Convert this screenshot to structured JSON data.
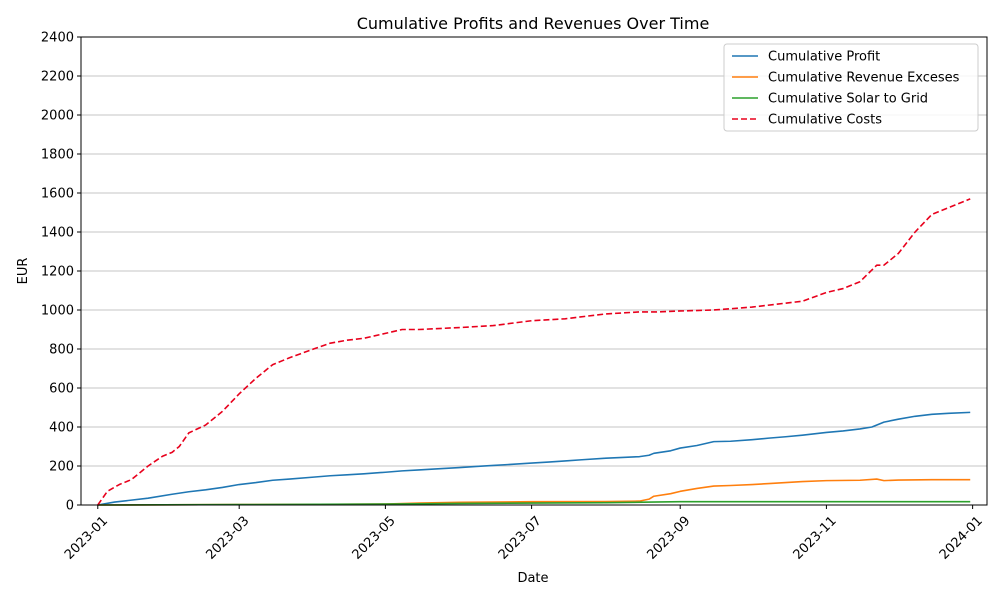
{
  "chart_data": {
    "type": "line",
    "title": "Cumulative Profits and Revenues Over Time",
    "xlabel": "Date",
    "ylabel": "EUR",
    "xlim": [
      "2022-12-25",
      "2024-01-07"
    ],
    "ylim": [
      0,
      2400
    ],
    "xticks": [
      "2023-01",
      "2023-03",
      "2023-05",
      "2023-07",
      "2023-09",
      "2023-11",
      "2024-01"
    ],
    "xtick_dates": [
      "2023-01-01",
      "2023-03-01",
      "2023-05-01",
      "2023-07-01",
      "2023-09-01",
      "2023-11-01",
      "2024-01-01"
    ],
    "yticks": [
      0,
      200,
      400,
      600,
      800,
      1000,
      1200,
      1400,
      1600,
      1800,
      2000,
      2200,
      2400
    ],
    "grid": "horizontal",
    "legend_position": "top-right",
    "series": [
      {
        "name": "Cumulative Profit",
        "color": "#1f77b4",
        "style": "solid",
        "points": [
          [
            "2023-01-01",
            0
          ],
          [
            "2023-01-08",
            15
          ],
          [
            "2023-01-15",
            25
          ],
          [
            "2023-01-22",
            35
          ],
          [
            "2023-02-01",
            55
          ],
          [
            "2023-02-08",
            68
          ],
          [
            "2023-02-15",
            78
          ],
          [
            "2023-02-22",
            90
          ],
          [
            "2023-03-01",
            105
          ],
          [
            "2023-03-08",
            115
          ],
          [
            "2023-03-15",
            127
          ],
          [
            "2023-03-22",
            133
          ],
          [
            "2023-04-01",
            143
          ],
          [
            "2023-04-08",
            150
          ],
          [
            "2023-04-15",
            155
          ],
          [
            "2023-04-22",
            160
          ],
          [
            "2023-05-01",
            168
          ],
          [
            "2023-05-08",
            175
          ],
          [
            "2023-05-15",
            180
          ],
          [
            "2023-05-22",
            185
          ],
          [
            "2023-06-01",
            192
          ],
          [
            "2023-06-08",
            198
          ],
          [
            "2023-06-15",
            203
          ],
          [
            "2023-06-22",
            208
          ],
          [
            "2023-07-01",
            215
          ],
          [
            "2023-07-08",
            220
          ],
          [
            "2023-07-15",
            226
          ],
          [
            "2023-07-22",
            232
          ],
          [
            "2023-08-01",
            240
          ],
          [
            "2023-08-08",
            244
          ],
          [
            "2023-08-15",
            248
          ],
          [
            "2023-08-19",
            255
          ],
          [
            "2023-08-21",
            265
          ],
          [
            "2023-08-28",
            278
          ],
          [
            "2023-09-01",
            292
          ],
          [
            "2023-09-08",
            305
          ],
          [
            "2023-09-15",
            325
          ],
          [
            "2023-09-22",
            327
          ],
          [
            "2023-10-01",
            335
          ],
          [
            "2023-10-08",
            343
          ],
          [
            "2023-10-15",
            350
          ],
          [
            "2023-10-22",
            358
          ],
          [
            "2023-11-01",
            372
          ],
          [
            "2023-11-08",
            380
          ],
          [
            "2023-11-15",
            390
          ],
          [
            "2023-11-20",
            400
          ],
          [
            "2023-11-25",
            425
          ],
          [
            "2023-12-01",
            440
          ],
          [
            "2023-12-08",
            455
          ],
          [
            "2023-12-15",
            465
          ],
          [
            "2023-12-22",
            470
          ],
          [
            "2023-12-31",
            475
          ]
        ]
      },
      {
        "name": "Cumulative Revenue Exceses",
        "color": "#ff7f0e",
        "style": "solid",
        "points": [
          [
            "2023-01-01",
            0
          ],
          [
            "2023-03-01",
            2
          ],
          [
            "2023-04-01",
            3
          ],
          [
            "2023-05-01",
            5
          ],
          [
            "2023-05-15",
            10
          ],
          [
            "2023-06-01",
            14
          ],
          [
            "2023-07-01",
            17
          ],
          [
            "2023-08-01",
            18
          ],
          [
            "2023-08-15",
            20
          ],
          [
            "2023-08-19",
            30
          ],
          [
            "2023-08-21",
            45
          ],
          [
            "2023-08-28",
            58
          ],
          [
            "2023-09-01",
            70
          ],
          [
            "2023-09-08",
            85
          ],
          [
            "2023-09-15",
            97
          ],
          [
            "2023-09-22",
            100
          ],
          [
            "2023-10-01",
            105
          ],
          [
            "2023-10-08",
            110
          ],
          [
            "2023-10-15",
            115
          ],
          [
            "2023-10-22",
            120
          ],
          [
            "2023-11-01",
            125
          ],
          [
            "2023-11-15",
            127
          ],
          [
            "2023-11-22",
            133
          ],
          [
            "2023-11-25",
            125
          ],
          [
            "2023-12-01",
            128
          ],
          [
            "2023-12-15",
            130
          ],
          [
            "2023-12-31",
            130
          ]
        ]
      },
      {
        "name": "Cumulative Solar to Grid",
        "color": "#2ca02c",
        "style": "solid",
        "points": [
          [
            "2023-01-01",
            0
          ],
          [
            "2023-03-01",
            2
          ],
          [
            "2023-05-01",
            5
          ],
          [
            "2023-06-01",
            8
          ],
          [
            "2023-07-01",
            10
          ],
          [
            "2023-08-01",
            12
          ],
          [
            "2023-08-20",
            15
          ],
          [
            "2023-09-01",
            17
          ],
          [
            "2023-12-31",
            17
          ]
        ]
      },
      {
        "name": "Cumulative Costs",
        "color": "#e8001c",
        "style": "dashed",
        "points": [
          [
            "2023-01-01",
            0
          ],
          [
            "2023-01-05",
            70
          ],
          [
            "2023-01-10",
            105
          ],
          [
            "2023-01-15",
            130
          ],
          [
            "2023-01-22",
            200
          ],
          [
            "2023-01-28",
            250
          ],
          [
            "2023-02-01",
            270
          ],
          [
            "2023-02-04",
            300
          ],
          [
            "2023-02-08",
            370
          ],
          [
            "2023-02-15",
            410
          ],
          [
            "2023-02-22",
            480
          ],
          [
            "2023-03-01",
            570
          ],
          [
            "2023-03-08",
            650
          ],
          [
            "2023-03-15",
            720
          ],
          [
            "2023-03-22",
            755
          ],
          [
            "2023-04-01",
            800
          ],
          [
            "2023-04-08",
            830
          ],
          [
            "2023-04-15",
            845
          ],
          [
            "2023-04-22",
            855
          ],
          [
            "2023-05-01",
            880
          ],
          [
            "2023-05-08",
            900
          ],
          [
            "2023-05-15",
            900
          ],
          [
            "2023-06-01",
            910
          ],
          [
            "2023-06-15",
            920
          ],
          [
            "2023-07-01",
            945
          ],
          [
            "2023-07-15",
            955
          ],
          [
            "2023-08-01",
            980
          ],
          [
            "2023-08-15",
            990
          ],
          [
            "2023-08-22",
            990
          ],
          [
            "2023-09-01",
            995
          ],
          [
            "2023-09-15",
            1000
          ],
          [
            "2023-10-01",
            1015
          ],
          [
            "2023-10-15",
            1035
          ],
          [
            "2023-10-22",
            1045
          ],
          [
            "2023-11-01",
            1090
          ],
          [
            "2023-11-08",
            1110
          ],
          [
            "2023-11-15",
            1145
          ],
          [
            "2023-11-22",
            1230
          ],
          [
            "2023-11-25",
            1230
          ],
          [
            "2023-12-01",
            1290
          ],
          [
            "2023-12-08",
            1400
          ],
          [
            "2023-12-15",
            1490
          ],
          [
            "2023-12-22",
            1525
          ],
          [
            "2023-12-31",
            1570
          ]
        ]
      }
    ]
  }
}
